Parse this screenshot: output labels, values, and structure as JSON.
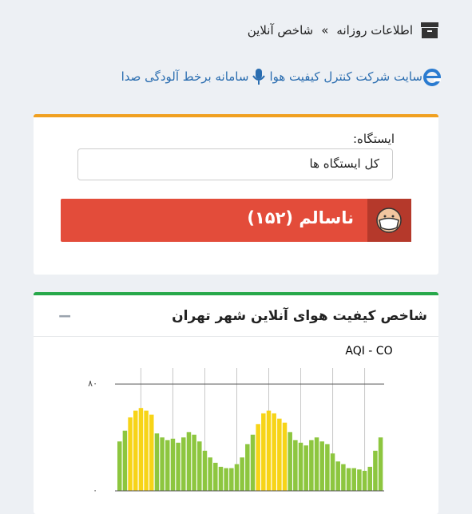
{
  "breadcrumb": {
    "section": "اطلاعات روزانه",
    "separator": "»",
    "page": "شاخص آنلاین"
  },
  "links": [
    "سایت شرکت کنترل کیفیت هوا",
    "سامانه برخط آلودگی صدا"
  ],
  "station": {
    "label": "ایستگاه:",
    "selected": "کل ایستگاه ها"
  },
  "status": "ناسالم (۱۵۲)",
  "panel": {
    "title": "شاخص کیفیت هوای آنلاین شهر تهران",
    "collapse": "−"
  },
  "chart_data": {
    "type": "bar",
    "title": "AQI - CO",
    "categories": [
      null,
      null,
      null,
      null,
      null,
      null,
      null,
      null,
      null,
      null,
      null,
      null,
      null,
      null,
      null,
      null,
      null,
      null,
      null,
      null,
      null,
      null,
      null,
      null,
      null,
      null,
      null,
      null,
      null,
      null,
      null,
      null,
      null,
      null,
      null,
      null,
      null,
      null,
      null,
      null,
      null,
      null,
      null,
      null,
      null,
      null,
      null,
      null,
      null,
      null
    ],
    "values": [
      37,
      45,
      55,
      60,
      62,
      60,
      57,
      43,
      40,
      38,
      39,
      36,
      40,
      44,
      42,
      37,
      30,
      25,
      21,
      18,
      17,
      17,
      20,
      25,
      35,
      42,
      50,
      58,
      60,
      58,
      54,
      51,
      44,
      38,
      36,
      34,
      38,
      40,
      37,
      35,
      28,
      22,
      20,
      17,
      17,
      16,
      15,
      18,
      30,
      40
    ],
    "colors": [
      "#8dc63f",
      "#8dc63f",
      "#f7d417",
      "#f7d417",
      "#f7d417",
      "#f7d417",
      "#f7d417",
      "#8dc63f",
      "#8dc63f",
      "#8dc63f",
      "#8dc63f",
      "#8dc63f",
      "#8dc63f",
      "#8dc63f",
      "#8dc63f",
      "#8dc63f",
      "#8dc63f",
      "#8dc63f",
      "#8dc63f",
      "#8dc63f",
      "#8dc63f",
      "#8dc63f",
      "#8dc63f",
      "#8dc63f",
      "#8dc63f",
      "#8dc63f",
      "#f7d417",
      "#f7d417",
      "#f7d417",
      "#f7d417",
      "#f7d417",
      "#f7d417",
      "#8dc63f",
      "#8dc63f",
      "#8dc63f",
      "#8dc63f",
      "#8dc63f",
      "#8dc63f",
      "#8dc63f",
      "#8dc63f",
      "#8dc63f",
      "#8dc63f",
      "#8dc63f",
      "#8dc63f",
      "#8dc63f",
      "#8dc63f",
      "#8dc63f",
      "#8dc63f",
      "#8dc63f",
      "#8dc63f"
    ],
    "ylim": [
      0,
      92
    ],
    "yticks": [
      {
        "value": 0,
        "label": "۰"
      },
      {
        "value": 80,
        "label": "۸۰"
      }
    ],
    "grid": true
  }
}
